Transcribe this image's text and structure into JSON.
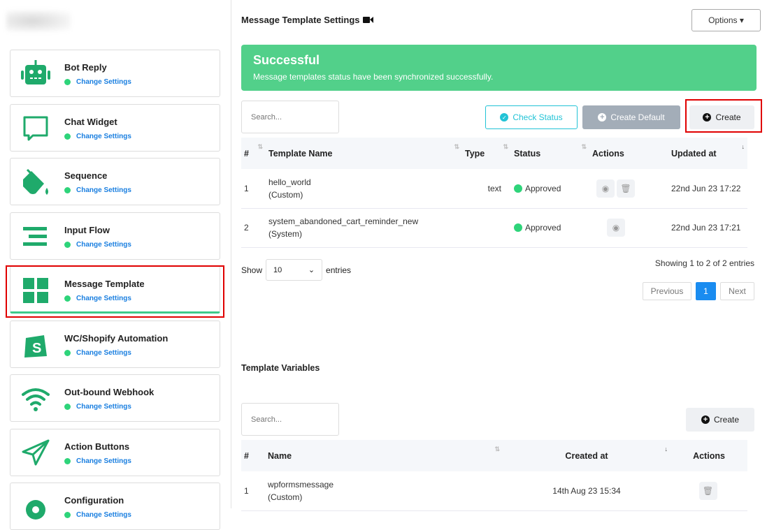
{
  "sidebar": {
    "items": [
      {
        "label": "Bot Reply",
        "link": "Change Settings",
        "icon": "robot-icon"
      },
      {
        "label": "Chat Widget",
        "link": "Change Settings",
        "icon": "chat-bubble-icon"
      },
      {
        "label": "Sequence",
        "link": "Change Settings",
        "icon": "paint-bucket-icon"
      },
      {
        "label": "Input Flow",
        "link": "Change Settings",
        "icon": "bars-icon"
      },
      {
        "label": "Message Template",
        "link": "Change Settings",
        "icon": "grid-icon",
        "active": true
      },
      {
        "label": "WC/Shopify Automation",
        "link": "Change Settings",
        "icon": "shopping-bag-icon"
      },
      {
        "label": "Out-bound Webhook",
        "link": "Change Settings",
        "icon": "wifi-icon"
      },
      {
        "label": "Action Buttons",
        "link": "Change Settings",
        "icon": "paper-plane-icon"
      },
      {
        "label": "Configuration",
        "link": "Change Settings",
        "icon": "gear-icon"
      }
    ]
  },
  "header": {
    "title": "Message Template Settings",
    "options": "Options ▾"
  },
  "alert": {
    "title": "Successful",
    "message": "Message templates status have been synchronized successfully."
  },
  "templates": {
    "search_placeholder": "Search...",
    "check_status": "Check Status",
    "create_default": "Create Default",
    "create": "Create",
    "columns": [
      "#",
      "Template Name",
      "Type",
      "Status",
      "Actions",
      "Updated at"
    ],
    "rows": [
      {
        "n": "1",
        "name": "hello_world",
        "kind": "(Custom)",
        "type": "text",
        "status": "Approved",
        "updated": "22nd Jun 23 17:22"
      },
      {
        "n": "2",
        "name": "system_abandoned_cart_reminder_new",
        "kind": "(System)",
        "type": "",
        "status": "Approved",
        "updated": "22nd Jun 23 17:21"
      }
    ],
    "show": "Show",
    "page_size": "10",
    "entries": "entries",
    "info": "Showing 1 to 2 of 2 entries",
    "previous": "Previous",
    "page": "1",
    "next": "Next"
  },
  "variables": {
    "title": "Template Variables",
    "search_placeholder": "Search...",
    "create": "Create",
    "columns": [
      "#",
      "Name",
      "Created at",
      "Actions"
    ],
    "rows": [
      {
        "n": "1",
        "name": "wpformsmessage",
        "kind": "(Custom)",
        "created": "14th Aug 23 15:34"
      }
    ]
  },
  "colors": {
    "accent": "#1faa6b",
    "success": "#52d08a",
    "highlight": "#e00000",
    "link": "#1a7fe0"
  }
}
